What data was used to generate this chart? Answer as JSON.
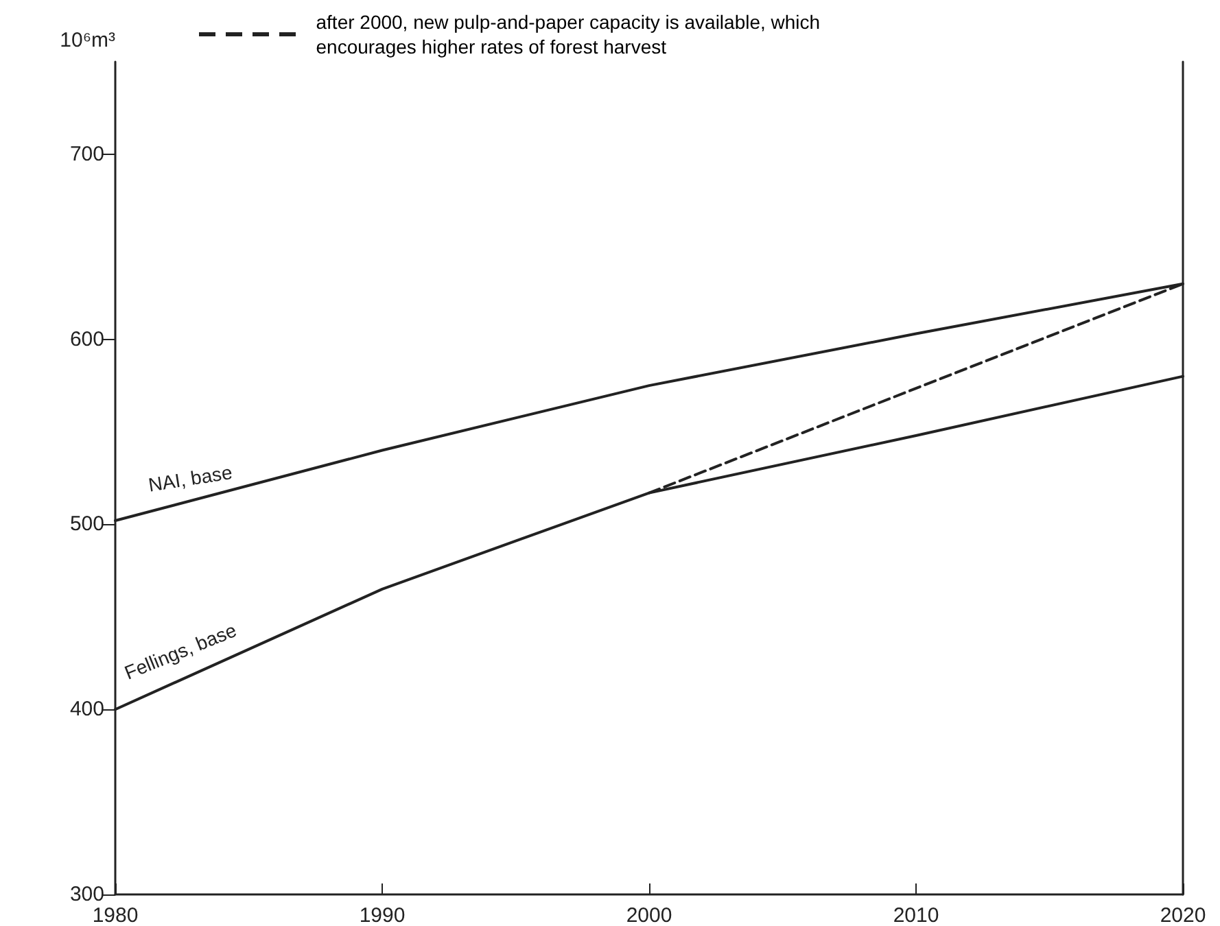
{
  "chart_data": {
    "type": "line",
    "ylabel": "10⁶m³",
    "x": [
      1980,
      1990,
      2000,
      2010,
      2020
    ],
    "series": [
      {
        "name": "NAI, base",
        "color": "#222222",
        "values": [
          502,
          540,
          575,
          603,
          630
        ]
      },
      {
        "name": "Fellings, base",
        "color": "#222222",
        "values": [
          400,
          465,
          517,
          548,
          580
        ]
      },
      {
        "name": "after 2000, new pulp-and-paper capacity is available, which\nencourages higher rates of forest harvest",
        "color": "#222222",
        "line_style": "dashed",
        "x": [
          2000,
          2020
        ],
        "values": [
          517,
          630
        ]
      }
    ],
    "xlim": [
      1980,
      2020
    ],
    "xticks": [
      1980,
      1990,
      2000,
      2010,
      2020
    ],
    "ylim": [
      300,
      750
    ],
    "yticks": [
      300,
      400,
      500,
      600,
      700
    ],
    "grid": false,
    "legend": "top",
    "marker": "none",
    "line_style": "solid"
  }
}
